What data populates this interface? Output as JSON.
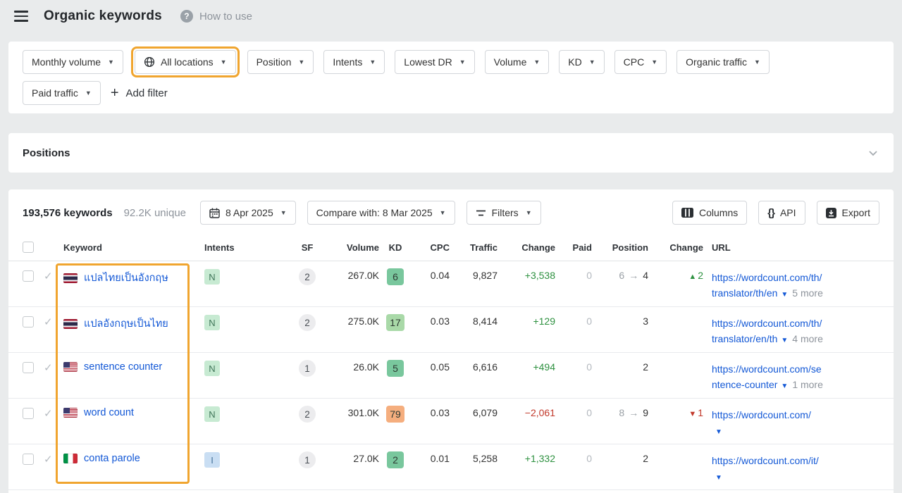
{
  "header": {
    "title": "Organic keywords",
    "help_label": "How to use"
  },
  "filters": {
    "monthly_volume": "Monthly volume",
    "all_locations": "All locations",
    "position": "Position",
    "intents": "Intents",
    "lowest_dr": "Lowest DR",
    "volume": "Volume",
    "kd": "KD",
    "cpc": "CPC",
    "organic_traffic": "Organic traffic",
    "paid_traffic": "Paid traffic",
    "add_filter": "Add filter"
  },
  "positions_panel": {
    "title": "Positions"
  },
  "toolbar": {
    "keywords_total": "193,576 keywords",
    "unique": "92.2K unique",
    "date": "8 Apr 2025",
    "compare": "Compare with: 8 Mar 2025",
    "filters": "Filters",
    "columns": "Columns",
    "api": "API",
    "export": "Export"
  },
  "table": {
    "headers": {
      "keyword": "Keyword",
      "intents": "Intents",
      "sf": "SF",
      "volume": "Volume",
      "kd": "KD",
      "cpc": "CPC",
      "traffic": "Traffic",
      "change": "Change",
      "paid": "Paid",
      "position": "Position",
      "position_change": "Change",
      "url": "URL"
    },
    "rows": [
      {
        "flag": "th",
        "keyword": "แปลไทยเป็นอังกฤษ",
        "intent": "N",
        "sf": "2",
        "volume": "267.0K",
        "kd": "6",
        "kd_color": "#79c79d",
        "cpc": "0.04",
        "traffic": "9,827",
        "traffic_change": "+3,538",
        "traffic_change_dir": "up",
        "paid": "0",
        "position_old": "6",
        "position": "4",
        "position_change": "2",
        "position_change_dir": "up",
        "url_line1": "https://wordcount.com/th/",
        "url_line2": "translator/th/en",
        "url_more": "5 more"
      },
      {
        "flag": "th",
        "keyword": "แปลอังกฤษเป็นไทย",
        "intent": "N",
        "sf": "2",
        "volume": "275.0K",
        "kd": "17",
        "kd_color": "#a9d9a8",
        "cpc": "0.03",
        "traffic": "8,414",
        "traffic_change": "+129",
        "traffic_change_dir": "up",
        "paid": "0",
        "position_old": "",
        "position": "3",
        "position_change": "",
        "position_change_dir": "",
        "url_line1": "https://wordcount.com/th/",
        "url_line2": "translator/en/th",
        "url_more": "4 more"
      },
      {
        "flag": "us",
        "keyword": "sentence counter",
        "intent": "N",
        "sf": "1",
        "volume": "26.0K",
        "kd": "5",
        "kd_color": "#79c79d",
        "cpc": "0.05",
        "traffic": "6,616",
        "traffic_change": "+494",
        "traffic_change_dir": "up",
        "paid": "0",
        "position_old": "",
        "position": "2",
        "position_change": "",
        "position_change_dir": "",
        "url_line1": "https://wordcount.com/se",
        "url_line2": "ntence-counter",
        "url_more": "1 more"
      },
      {
        "flag": "us",
        "keyword": "word count",
        "intent": "N",
        "sf": "2",
        "volume": "301.0K",
        "kd": "79",
        "kd_color": "#f5ae7e",
        "cpc": "0.03",
        "traffic": "6,079",
        "traffic_change": "−2,061",
        "traffic_change_dir": "down",
        "paid": "0",
        "position_old": "8",
        "position": "9",
        "position_change": "1",
        "position_change_dir": "down",
        "url_line1": "https://wordcount.com/",
        "url_line2": "",
        "url_more": ""
      },
      {
        "flag": "it",
        "keyword": "conta parole",
        "intent": "I",
        "sf": "1",
        "volume": "27.0K",
        "kd": "2",
        "kd_color": "#79c79d",
        "cpc": "0.01",
        "traffic": "5,258",
        "traffic_change": "+1,332",
        "traffic_change_dir": "up",
        "paid": "0",
        "position_old": "",
        "position": "2",
        "position_change": "",
        "position_change_dir": "",
        "url_line1": "https://wordcount.com/it/",
        "url_line2": "",
        "url_more": ""
      }
    ]
  }
}
